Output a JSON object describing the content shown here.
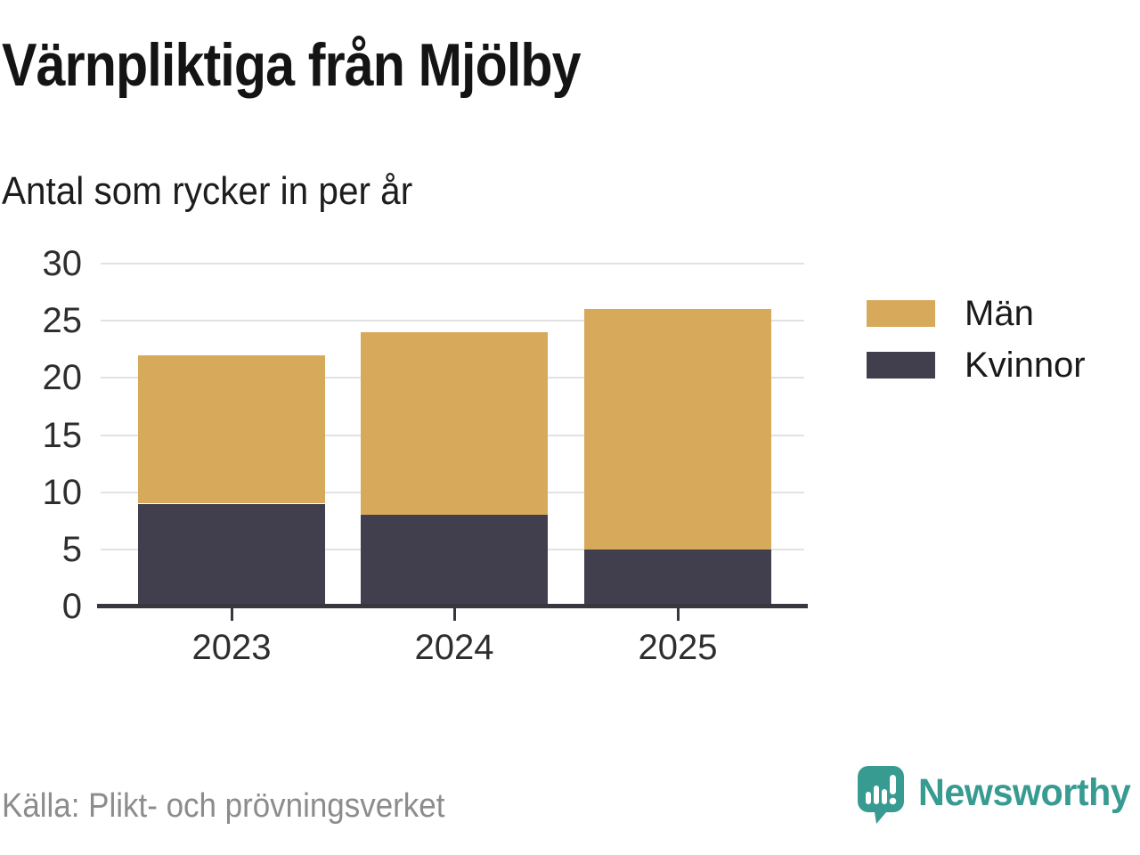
{
  "header": {
    "title": "Värnpliktiga från Mjölby",
    "subtitle": "Antal som rycker in per år"
  },
  "chart_data": {
    "type": "bar",
    "stacked": true,
    "title": "Värnpliktiga från Mjölby",
    "subtitle": "Antal som rycker in per år",
    "categories": [
      "2023",
      "2024",
      "2025"
    ],
    "series": [
      {
        "name": "Män",
        "color": "#D7A95B",
        "values": [
          13,
          16,
          21
        ]
      },
      {
        "name": "Kvinnor",
        "color": "#413F4E",
        "values": [
          9,
          8,
          5
        ]
      }
    ],
    "stack_order": [
      "Kvinnor",
      "Män"
    ],
    "stacked_totals": [
      22,
      24,
      26
    ],
    "ylim": [
      0,
      30
    ],
    "yticks": [
      0,
      5,
      10,
      15,
      20,
      25,
      30
    ],
    "xlabel": "",
    "ylabel": "",
    "grid": "horizontal",
    "legend_position": "right"
  },
  "footer": {
    "source": "Källa: Plikt- och prövningsverket",
    "brand": "Newsworthy"
  },
  "icons": {
    "brand_logo": "newsworthy-speech-bubble-bar-chart-icon"
  },
  "colors": {
    "men_bar": "#D7A95B",
    "women_bar": "#413F4E",
    "brand_teal": "#389B92",
    "gridline": "#E2E2E2",
    "axis": "#38363F",
    "heading_text": "#141414",
    "tick_text": "#2E2E2E",
    "source_text": "#8C8C8C",
    "background": "#FFFFFF"
  }
}
